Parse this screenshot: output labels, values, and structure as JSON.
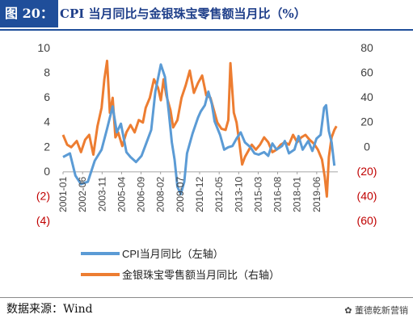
{
  "header": {
    "tag": "图 20：",
    "title": "CPI 当月同比与金银珠宝零售额当月比（%）"
  },
  "footer": {
    "source": "数据来源：Wind",
    "watermark": "✿ 董德乾新营销"
  },
  "colors": {
    "header_bg": "#1f4e9a",
    "cpi": "#5b9bd5",
    "jewelry": "#ed7d31",
    "left_axis_text": "#404040",
    "right_axis_text": "#c00000"
  },
  "chart_data": {
    "type": "line",
    "grid": false,
    "legend_position": "bottom",
    "x_tick_labels": [
      "2001-01",
      "2002-06",
      "2003-11",
      "2005-04",
      "2006-09",
      "2008-02",
      "2009-07",
      "2010-12",
      "2012-05",
      "2013-10",
      "2015-03",
      "2016-08",
      "2018-01",
      "2019-06"
    ],
    "left_axis": {
      "ylim": [
        -4,
        10
      ],
      "ticks": [
        10,
        8,
        6,
        4,
        2,
        0,
        -2,
        -4
      ],
      "tick_labels": [
        "10",
        "8",
        "6",
        "4",
        "2",
        "0",
        "(2)",
        "(4)"
      ]
    },
    "right_axis": {
      "ylim": [
        -60,
        80
      ],
      "ticks": [
        80,
        60,
        40,
        20,
        0,
        -20,
        -40,
        -60
      ],
      "tick_labels": [
        "80",
        "60",
        "40",
        "20",
        "0",
        "(20)",
        "(40)",
        "(60)"
      ]
    },
    "series": [
      {
        "name": "CPI当月同比（左轴）",
        "axis": "left",
        "points": [
          [
            2001.0,
            1.2
          ],
          [
            2001.5,
            1.5
          ],
          [
            2001.9,
            -0.3
          ],
          [
            2002.3,
            -1.0
          ],
          [
            2002.8,
            -0.8
          ],
          [
            2003.3,
            0.9
          ],
          [
            2003.8,
            1.8
          ],
          [
            2004.2,
            3.5
          ],
          [
            2004.6,
            5.3
          ],
          [
            2004.9,
            3.2
          ],
          [
            2005.2,
            3.9
          ],
          [
            2005.6,
            1.6
          ],
          [
            2005.9,
            1.2
          ],
          [
            2006.3,
            0.8
          ],
          [
            2006.7,
            1.3
          ],
          [
            2007.0,
            2.2
          ],
          [
            2007.4,
            3.4
          ],
          [
            2007.7,
            6.5
          ],
          [
            2008.1,
            8.7
          ],
          [
            2008.4,
            7.7
          ],
          [
            2008.7,
            4.6
          ],
          [
            2008.9,
            2.4
          ],
          [
            2009.1,
            1.0
          ],
          [
            2009.3,
            -1.2
          ],
          [
            2009.55,
            -1.8
          ],
          [
            2009.8,
            -0.8
          ],
          [
            2010.0,
            1.5
          ],
          [
            2010.4,
            3.1
          ],
          [
            2010.8,
            4.4
          ],
          [
            2011.0,
            4.9
          ],
          [
            2011.3,
            5.4
          ],
          [
            2011.55,
            6.5
          ],
          [
            2011.8,
            5.5
          ],
          [
            2012.0,
            4.1
          ],
          [
            2012.4,
            3.0
          ],
          [
            2012.7,
            1.8
          ],
          [
            2013.0,
            2.0
          ],
          [
            2013.3,
            2.1
          ],
          [
            2013.6,
            2.7
          ],
          [
            2013.9,
            3.2
          ],
          [
            2014.2,
            2.4
          ],
          [
            2014.6,
            2.0
          ],
          [
            2014.9,
            1.5
          ],
          [
            2015.2,
            1.4
          ],
          [
            2015.6,
            1.6
          ],
          [
            2015.9,
            1.3
          ],
          [
            2016.2,
            2.3
          ],
          [
            2016.5,
            1.8
          ],
          [
            2016.9,
            2.1
          ],
          [
            2017.1,
            2.5
          ],
          [
            2017.4,
            1.5
          ],
          [
            2017.8,
            1.8
          ],
          [
            2018.1,
            2.9
          ],
          [
            2018.4,
            1.8
          ],
          [
            2018.8,
            2.5
          ],
          [
            2019.1,
            1.7
          ],
          [
            2019.4,
            2.7
          ],
          [
            2019.7,
            3.0
          ],
          [
            2019.95,
            5.2
          ],
          [
            2020.1,
            5.4
          ],
          [
            2020.3,
            3.3
          ],
          [
            2020.5,
            2.4
          ],
          [
            2020.7,
            0.5
          ]
        ]
      },
      {
        "name": "金银珠宝零售额当月同比（右轴）",
        "axis": "right",
        "points": [
          [
            2001.0,
            10
          ],
          [
            2001.3,
            2
          ],
          [
            2001.6,
            0
          ],
          [
            2002.0,
            5
          ],
          [
            2002.3,
            -4
          ],
          [
            2002.6,
            6
          ],
          [
            2002.9,
            10
          ],
          [
            2003.2,
            -6
          ],
          [
            2003.5,
            17
          ],
          [
            2003.8,
            32
          ],
          [
            2004.0,
            55
          ],
          [
            2004.2,
            70
          ],
          [
            2004.4,
            28
          ],
          [
            2004.6,
            40
          ],
          [
            2004.8,
            8
          ],
          [
            2005.0,
            12
          ],
          [
            2005.3,
            1
          ],
          [
            2005.6,
            12
          ],
          [
            2005.9,
            18
          ],
          [
            2006.2,
            12
          ],
          [
            2006.5,
            22
          ],
          [
            2006.8,
            20
          ],
          [
            2007.0,
            32
          ],
          [
            2007.3,
            40
          ],
          [
            2007.6,
            55
          ],
          [
            2007.9,
            48
          ],
          [
            2008.1,
            38
          ],
          [
            2008.3,
            55
          ],
          [
            2008.5,
            42
          ],
          [
            2008.8,
            30
          ],
          [
            2009.0,
            16
          ],
          [
            2009.3,
            22
          ],
          [
            2009.6,
            40
          ],
          [
            2009.9,
            50
          ],
          [
            2010.2,
            62
          ],
          [
            2010.5,
            44
          ],
          [
            2010.8,
            52
          ],
          [
            2011.1,
            58
          ],
          [
            2011.4,
            42
          ],
          [
            2011.7,
            40
          ],
          [
            2011.9,
            32
          ],
          [
            2012.2,
            20
          ],
          [
            2012.5,
            15
          ],
          [
            2012.8,
            14
          ],
          [
            2013.0,
            22
          ],
          [
            2013.15,
            68
          ],
          [
            2013.4,
            28
          ],
          [
            2013.6,
            20
          ],
          [
            2013.8,
            4
          ],
          [
            2014.0,
            -14
          ],
          [
            2014.2,
            -8
          ],
          [
            2014.4,
            -4
          ],
          [
            2014.7,
            2
          ],
          [
            2015.0,
            -2
          ],
          [
            2015.3,
            2
          ],
          [
            2015.6,
            8
          ],
          [
            2015.9,
            4
          ],
          [
            2016.2,
            -4
          ],
          [
            2016.5,
            -2
          ],
          [
            2016.8,
            2
          ],
          [
            2017.1,
            4
          ],
          [
            2017.4,
            2
          ],
          [
            2017.7,
            10
          ],
          [
            2018.0,
            4
          ],
          [
            2018.3,
            8
          ],
          [
            2018.6,
            10
          ],
          [
            2018.9,
            6
          ],
          [
            2019.2,
            3
          ],
          [
            2019.5,
            -2
          ],
          [
            2019.8,
            -10
          ],
          [
            2020.0,
            -24
          ],
          [
            2020.15,
            -40
          ],
          [
            2020.3,
            -8
          ],
          [
            2020.5,
            8
          ],
          [
            2020.7,
            14
          ],
          [
            2020.85,
            17
          ]
        ]
      }
    ]
  }
}
